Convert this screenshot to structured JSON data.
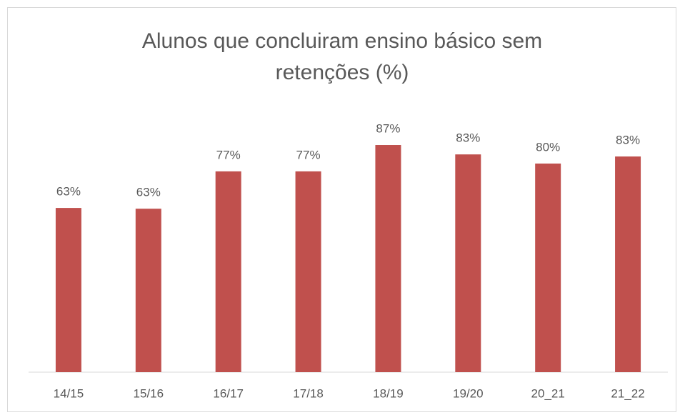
{
  "chart_data": {
    "type": "bar",
    "title": "Alunos que concluiram ensino básico sem retenções (%)",
    "categories": [
      "14/15",
      "15/16",
      "16/17",
      "17/18",
      "18/19",
      "19/20",
      "20_21",
      "21_22"
    ],
    "values": [
      62.9,
      62.6,
      76.9,
      76.9,
      87.0,
      83.4,
      79.9,
      82.6
    ],
    "value_labels": [
      "63%",
      "63%",
      "77%",
      "77%",
      "87%",
      "83%",
      "80%",
      "83%"
    ],
    "color": "#c0504d",
    "ylim": [
      0,
      100
    ]
  }
}
